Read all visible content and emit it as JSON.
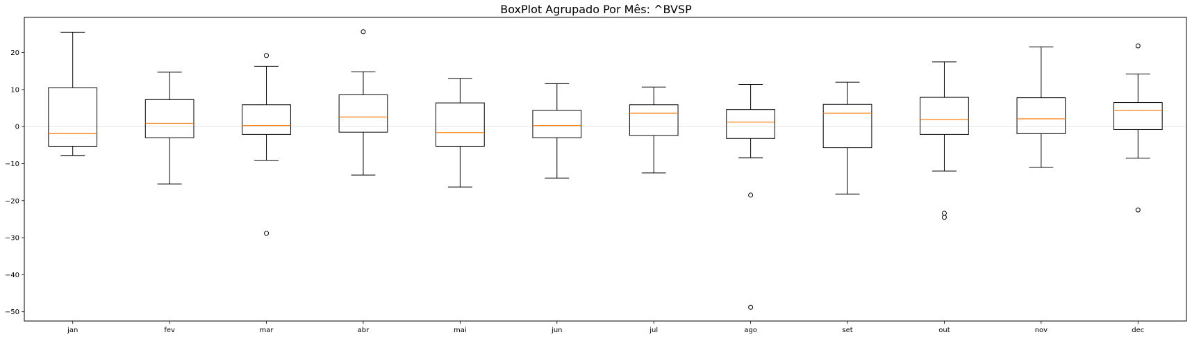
{
  "chart_data": {
    "type": "boxplot",
    "title": "BoxPlot Agrupado Por Mês: ^BVSP",
    "xlabel": "",
    "ylabel": "",
    "ylim": [
      -52.5,
      29.5
    ],
    "yticks": [
      20,
      10,
      0,
      -10,
      -20,
      -30,
      -40,
      -50
    ],
    "ytick_labels": [
      "20",
      "10",
      "0",
      "−10",
      "−20",
      "−30",
      "−40",
      "−50"
    ],
    "reference_line": 0,
    "categories": [
      "jan",
      "fev",
      "mar",
      "abr",
      "mai",
      "jun",
      "jul",
      "ago",
      "set",
      "out",
      "nov",
      "dec"
    ],
    "boxes": [
      {
        "whislo": -7.8,
        "q1": -5.3,
        "med": -1.9,
        "q3": 10.5,
        "whishi": 25.5,
        "fliers": []
      },
      {
        "whislo": -15.5,
        "q1": -3.0,
        "med": 0.9,
        "q3": 7.3,
        "whishi": 14.7,
        "fliers": []
      },
      {
        "whislo": -9.1,
        "q1": -2.1,
        "med": 0.3,
        "q3": 5.9,
        "whishi": 16.3,
        "fliers": [
          19.2,
          -28.8
        ]
      },
      {
        "whislo": -13.1,
        "q1": -1.5,
        "med": 2.6,
        "q3": 8.6,
        "whishi": 14.8,
        "fliers": [
          25.6
        ]
      },
      {
        "whislo": -16.3,
        "q1": -5.3,
        "med": -1.6,
        "q3": 6.4,
        "whishi": 13.0,
        "fliers": []
      },
      {
        "whislo": -13.9,
        "q1": -3.0,
        "med": 0.3,
        "q3": 4.4,
        "whishi": 11.6,
        "fliers": []
      },
      {
        "whislo": -12.5,
        "q1": -2.4,
        "med": 3.6,
        "q3": 5.9,
        "whishi": 10.7,
        "fliers": []
      },
      {
        "whislo": -8.4,
        "q1": -3.2,
        "med": 1.2,
        "q3": 4.6,
        "whishi": 11.4,
        "fliers": [
          -18.5,
          -48.8
        ]
      },
      {
        "whislo": -18.2,
        "q1": -5.7,
        "med": 3.6,
        "q3": 6.0,
        "whishi": 12.0,
        "fliers": []
      },
      {
        "whislo": -12.0,
        "q1": -2.1,
        "med": 1.9,
        "q3": 7.9,
        "whishi": 17.5,
        "fliers": [
          -23.4,
          -24.5
        ]
      },
      {
        "whislo": -11.0,
        "q1": -1.9,
        "med": 2.1,
        "q3": 7.8,
        "whishi": 21.5,
        "fliers": []
      },
      {
        "whislo": -8.5,
        "q1": -0.8,
        "med": 4.4,
        "q3": 6.5,
        "whishi": 14.2,
        "fliers": [
          21.8,
          -22.5
        ]
      }
    ],
    "colors": {
      "box": "#000000",
      "median": "#ff7f0e",
      "flier": "#000000",
      "reference": "#e6e6e6"
    },
    "grid": false,
    "legend": "none"
  }
}
